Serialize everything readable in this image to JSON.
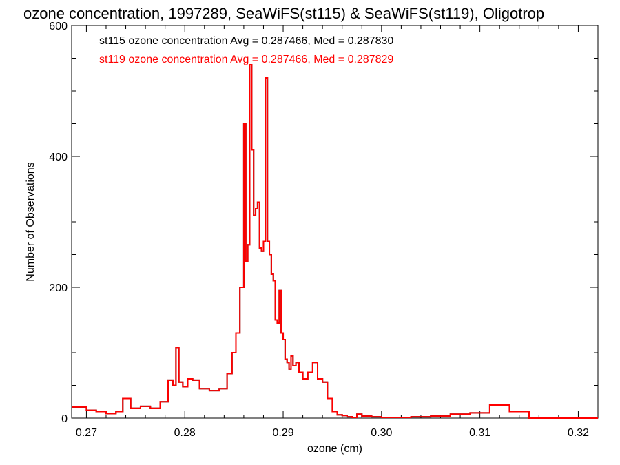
{
  "chart_data": {
    "type": "line",
    "title": "ozone concentration, 1997289, SeaWiFS(st115) & SeaWiFS(st119), Oligotrop",
    "xlabel": "ozone (cm)",
    "ylabel": "Number of Observations",
    "xlim": [
      0.2685,
      0.322
    ],
    "ylim": [
      0,
      600
    ],
    "xticks": [
      {
        "value": 0.27,
        "label": "0.27"
      },
      {
        "value": 0.28,
        "label": "0.28"
      },
      {
        "value": 0.29,
        "label": "0.29"
      },
      {
        "value": 0.3,
        "label": "0.30"
      },
      {
        "value": 0.31,
        "label": "0.31"
      },
      {
        "value": 0.32,
        "label": "0.32"
      }
    ],
    "yticks": [
      {
        "value": 0,
        "label": "0"
      },
      {
        "value": 200,
        "label": "200"
      },
      {
        "value": 400,
        "label": "400"
      },
      {
        "value": 600,
        "label": "600"
      }
    ],
    "series": [
      {
        "name": "st115",
        "color": "#000000",
        "legend": "st115 ozone concentration Avg = 0.287466, Med = 0.287830",
        "x": [
          0.2685,
          0.27,
          0.271,
          0.272,
          0.273,
          0.2737,
          0.2745,
          0.2755,
          0.2765,
          0.2775,
          0.2783,
          0.2788,
          0.2791,
          0.2794,
          0.2798,
          0.2803,
          0.2808,
          0.2815,
          0.2825,
          0.2835,
          0.2843,
          0.2848,
          0.2852,
          0.2856,
          0.286,
          0.2862,
          0.2864,
          0.2866,
          0.2868,
          0.287,
          0.2872,
          0.2874,
          0.2876,
          0.2878,
          0.288,
          0.2882,
          0.2884,
          0.2886,
          0.2888,
          0.289,
          0.2892,
          0.2894,
          0.2896,
          0.2898,
          0.29,
          0.2902,
          0.2904,
          0.2906,
          0.2908,
          0.291,
          0.2913,
          0.2916,
          0.292,
          0.2925,
          0.293,
          0.2935,
          0.294,
          0.2945,
          0.295,
          0.2955,
          0.296,
          0.2965,
          0.297,
          0.2975,
          0.298,
          0.299,
          0.3,
          0.301,
          0.302,
          0.303,
          0.305,
          0.307,
          0.309,
          0.311,
          0.313,
          0.315,
          0.317,
          0.319,
          0.32,
          0.321,
          0.3215,
          0.322
        ],
        "y": [
          17,
          12,
          10,
          7,
          10,
          30,
          15,
          18,
          15,
          25,
          58,
          50,
          108,
          55,
          48,
          60,
          58,
          45,
          42,
          45,
          68,
          100,
          130,
          200,
          450,
          240,
          265,
          540,
          410,
          310,
          320,
          330,
          260,
          255,
          270,
          520,
          270,
          250,
          220,
          210,
          150,
          145,
          195,
          130,
          120,
          90,
          85,
          75,
          95,
          80,
          85,
          70,
          60,
          70,
          85,
          60,
          55,
          30,
          10,
          5,
          4,
          2,
          1,
          6,
          3,
          2,
          1,
          1,
          1,
          2,
          3,
          6,
          8,
          20,
          10,
          0,
          0,
          0,
          0,
          0,
          0,
          0
        ]
      },
      {
        "name": "st119",
        "color": "#ff0000",
        "legend": "st119 ozone concentration Avg = 0.287466, Med = 0.287829",
        "x": [
          0.2685,
          0.27,
          0.271,
          0.272,
          0.273,
          0.2737,
          0.2745,
          0.2755,
          0.2765,
          0.2775,
          0.2783,
          0.2788,
          0.2791,
          0.2794,
          0.2798,
          0.2803,
          0.2808,
          0.2815,
          0.2825,
          0.2835,
          0.2843,
          0.2848,
          0.2852,
          0.2856,
          0.286,
          0.2862,
          0.2864,
          0.2866,
          0.2868,
          0.287,
          0.2872,
          0.2874,
          0.2876,
          0.2878,
          0.288,
          0.2882,
          0.2884,
          0.2886,
          0.2888,
          0.289,
          0.2892,
          0.2894,
          0.2896,
          0.2898,
          0.29,
          0.2902,
          0.2904,
          0.2906,
          0.2908,
          0.291,
          0.2913,
          0.2916,
          0.292,
          0.2925,
          0.293,
          0.2935,
          0.294,
          0.2945,
          0.295,
          0.2955,
          0.296,
          0.2965,
          0.297,
          0.2975,
          0.298,
          0.299,
          0.3,
          0.301,
          0.302,
          0.303,
          0.305,
          0.307,
          0.309,
          0.311,
          0.313,
          0.315,
          0.317,
          0.319,
          0.32,
          0.321,
          0.3215,
          0.322
        ],
        "y": [
          17,
          12,
          10,
          7,
          10,
          30,
          15,
          18,
          15,
          25,
          58,
          50,
          108,
          55,
          48,
          60,
          58,
          45,
          42,
          45,
          68,
          100,
          130,
          200,
          450,
          240,
          265,
          540,
          410,
          310,
          320,
          330,
          260,
          255,
          270,
          520,
          270,
          250,
          220,
          210,
          150,
          145,
          195,
          130,
          120,
          90,
          85,
          75,
          95,
          80,
          85,
          70,
          60,
          70,
          85,
          60,
          55,
          30,
          10,
          5,
          4,
          2,
          1,
          6,
          3,
          2,
          1,
          1,
          1,
          2,
          3,
          6,
          8,
          20,
          10,
          0,
          0,
          0,
          0,
          0,
          0,
          0
        ]
      }
    ]
  }
}
